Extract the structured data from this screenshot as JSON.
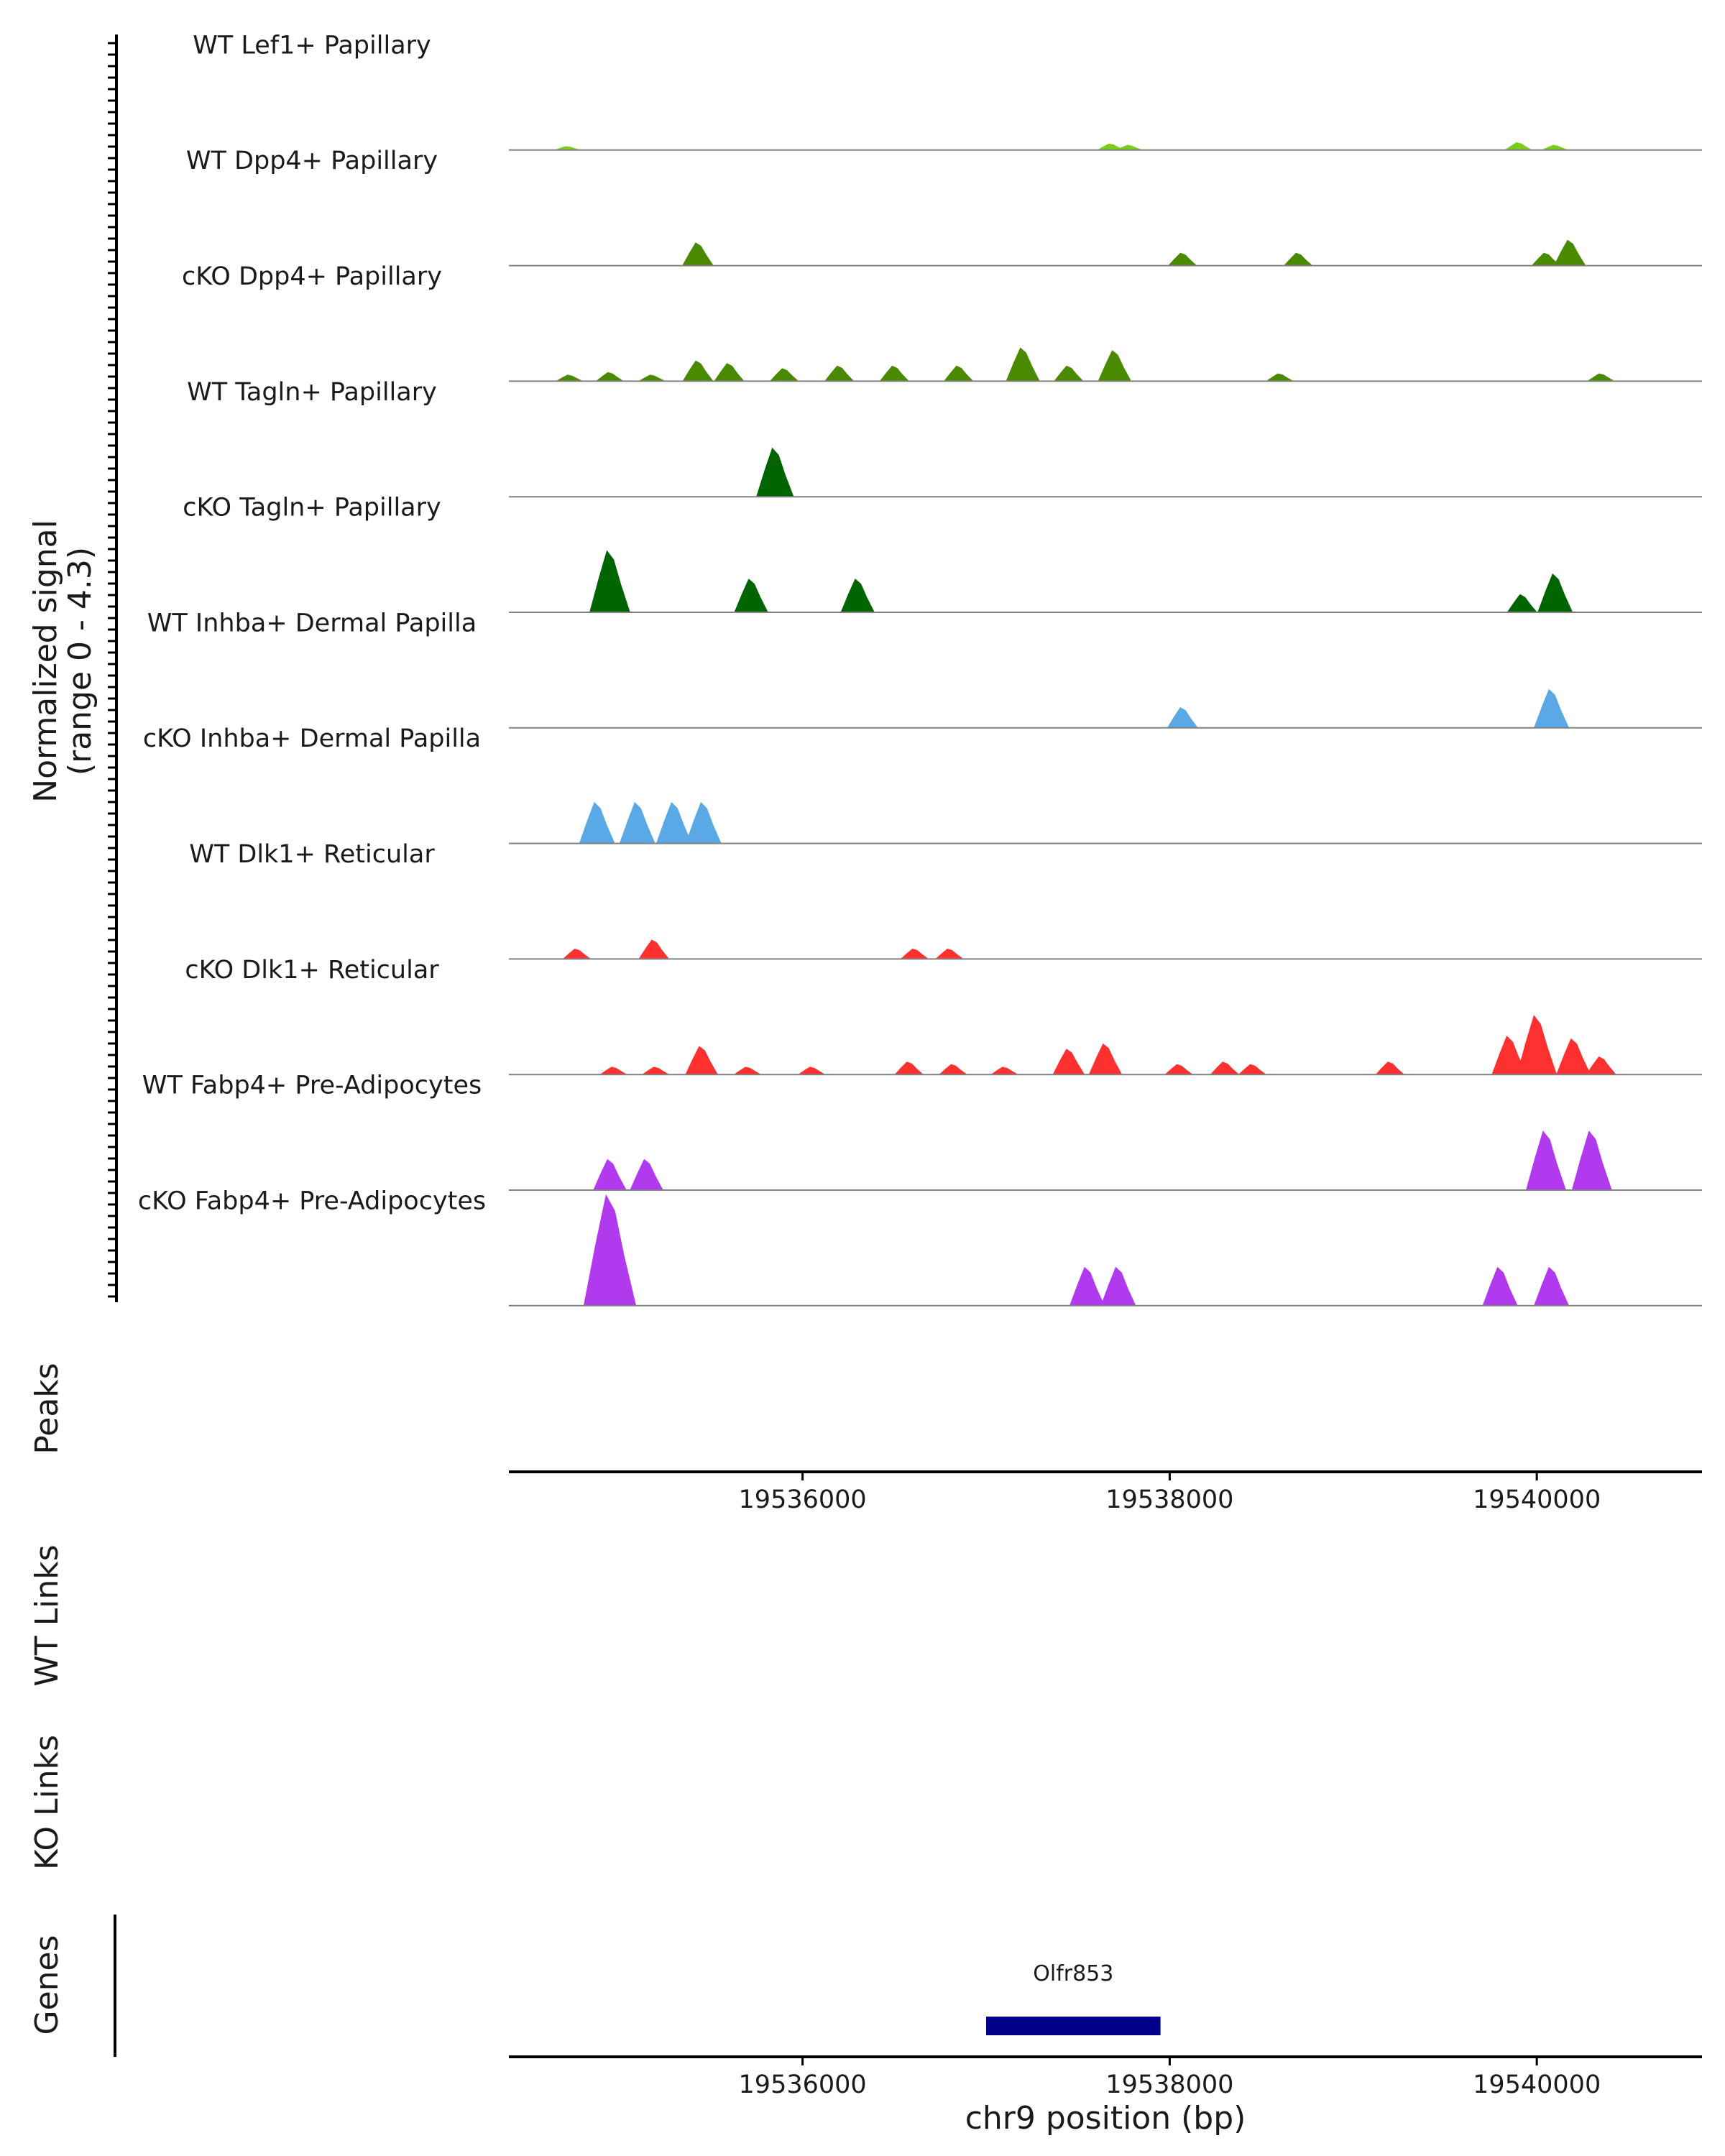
{
  "chart_data": {
    "type": "area",
    "chromosome": "chr9",
    "xlim": [
      19534400,
      19540900
    ],
    "ylim": [
      0,
      4.3
    ],
    "y_axis_label": [
      "Normalized signal",
      "(range 0 - 4.3)"
    ],
    "x_axis_label": "chr9 position (bp)",
    "x_ticks": [
      19536000,
      19538000,
      19540000
    ],
    "x_tick_labels": [
      "19536000",
      "19538000",
      "19540000"
    ],
    "colors": {
      "lef1": "#7CCD1A",
      "dpp4": "#4A8A00",
      "tagln": "#006400",
      "inhba": "#5AA9E6",
      "dlk1": "#FF3030",
      "fabp4": "#B23AEE",
      "gene": "#00008B",
      "axis": "#000000",
      "baseline": "#808080"
    },
    "tracks": [
      {
        "label": "WT Lef1+ Papillary",
        "color": "#7CCD1A",
        "peaks": [
          [
            19534720,
            0.15
          ],
          [
            19537680,
            0.25
          ],
          [
            19537780,
            0.2
          ],
          [
            19539900,
            0.3
          ],
          [
            19540100,
            0.2
          ]
        ]
      },
      {
        "label": "WT Dpp4+ Papillary",
        "color": "#4A8A00",
        "peaks": [
          [
            19535430,
            0.9
          ],
          [
            19538070,
            0.5
          ],
          [
            19538700,
            0.5
          ],
          [
            19540050,
            0.5
          ],
          [
            19540180,
            1.0
          ]
        ]
      },
      {
        "label": "cKO Dpp4+ Papillary",
        "color": "#4A8A00",
        "peaks": [
          [
            19534730,
            0.25
          ],
          [
            19534950,
            0.35
          ],
          [
            19535180,
            0.25
          ],
          [
            19535430,
            0.8
          ],
          [
            19535600,
            0.7
          ],
          [
            19535900,
            0.5
          ],
          [
            19536200,
            0.6
          ],
          [
            19536500,
            0.6
          ],
          [
            19536850,
            0.6
          ],
          [
            19537200,
            1.3
          ],
          [
            19537450,
            0.6
          ],
          [
            19537700,
            1.2
          ],
          [
            19538600,
            0.3
          ],
          [
            19540350,
            0.3
          ]
        ]
      },
      {
        "label": "WT Tagln+ Papillary",
        "color": "#006400",
        "peaks": [
          [
            19535850,
            1.9
          ]
        ]
      },
      {
        "label": "cKO Tagln+ Papillary",
        "color": "#006400",
        "peaks": [
          [
            19534950,
            2.4
          ],
          [
            19535720,
            1.3
          ],
          [
            19536300,
            1.3
          ],
          [
            19539920,
            0.7
          ],
          [
            19540100,
            1.5
          ]
        ]
      },
      {
        "label": "WT Inhba+ Dermal Papilla",
        "color": "#5AA9E6",
        "peaks": [
          [
            19538070,
            0.8
          ],
          [
            19540080,
            1.5
          ]
        ]
      },
      {
        "label": "cKO Inhba+ Dermal Papilla",
        "color": "#5AA9E6",
        "peaks": [
          [
            19534880,
            1.6
          ],
          [
            19535100,
            1.6
          ],
          [
            19535300,
            1.6
          ],
          [
            19535460,
            1.6
          ]
        ]
      },
      {
        "label": "WT Dlk1+ Reticular",
        "color": "#FF3030",
        "peaks": [
          [
            19534770,
            0.4
          ],
          [
            19535190,
            0.75
          ],
          [
            19536610,
            0.4
          ],
          [
            19536800,
            0.4
          ]
        ]
      },
      {
        "label": "cKO Dlk1+ Reticular",
        "color": "#FF3030",
        "peaks": [
          [
            19534970,
            0.3
          ],
          [
            19535200,
            0.3
          ],
          [
            19535450,
            1.1
          ],
          [
            19535700,
            0.3
          ],
          [
            19536050,
            0.3
          ],
          [
            19536580,
            0.5
          ],
          [
            19536820,
            0.4
          ],
          [
            19537100,
            0.3
          ],
          [
            19537450,
            1.0
          ],
          [
            19537650,
            1.2
          ],
          [
            19538050,
            0.4
          ],
          [
            19538300,
            0.5
          ],
          [
            19538450,
            0.4
          ],
          [
            19539200,
            0.5
          ],
          [
            19539850,
            1.5
          ],
          [
            19540000,
            2.3
          ],
          [
            19540200,
            1.4
          ],
          [
            19540350,
            0.7
          ]
        ]
      },
      {
        "label": "WT Fabp4+ Pre-Adipocytes",
        "color": "#B23AEE",
        "peaks": [
          [
            19534950,
            1.2
          ],
          [
            19535150,
            1.2
          ],
          [
            19540050,
            2.3
          ],
          [
            19540300,
            2.3
          ]
        ]
      },
      {
        "label": "cKO Fabp4+ Pre-Adipocytes",
        "color": "#B23AEE",
        "peaks": [
          [
            19534950,
            4.3
          ],
          [
            19537550,
            1.5
          ],
          [
            19537720,
            1.5
          ],
          [
            19539800,
            1.5
          ],
          [
            19540080,
            1.5
          ]
        ]
      }
    ],
    "panels": {
      "peaks": "Peaks",
      "wt_links": "WT Links",
      "ko_links": "KO Links",
      "genes": "Genes"
    },
    "genes": [
      {
        "name": "Olfr853",
        "start": 19537000,
        "end": 19537950
      }
    ]
  }
}
